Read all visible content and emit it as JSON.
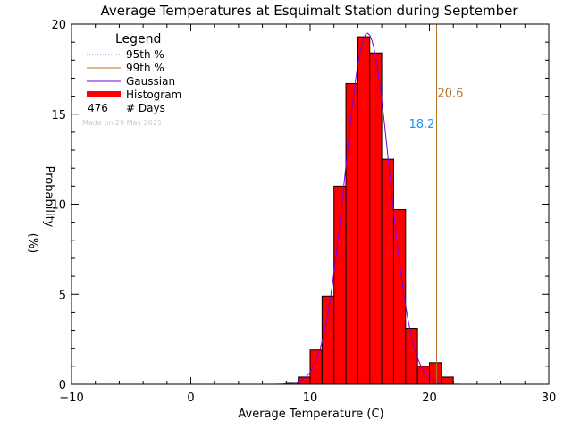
{
  "chart_data": {
    "type": "bar",
    "title": "Average Temperatures at Esquimalt Station during September",
    "xlabel": "Average Temperature (C)",
    "ylabel_top": "Probability",
    "ylabel_bottom": "(%)",
    "xlim": [
      -10,
      30
    ],
    "ylim": [
      0,
      20
    ],
    "xticks": [
      -10,
      0,
      10,
      20,
      30
    ],
    "yticks": [
      0,
      5,
      10,
      15,
      20
    ],
    "grid": false,
    "legend_placement": "top-left",
    "legend": {
      "title": "Legend",
      "items": [
        {
          "label": "95th %",
          "style": "dotted",
          "color": "#1e90ff"
        },
        {
          "label": "99th %",
          "style": "solid",
          "color": "#b8742a"
        },
        {
          "label": "Gaussian",
          "style": "solid",
          "color": "#7a00d6"
        },
        {
          "label": "Histogram",
          "style": "bar",
          "color": "#ff0000"
        }
      ],
      "days_count": "476",
      "days_label": "# Days"
    },
    "made_on": "Made on 29 May 2025",
    "histogram": {
      "bin_width": 1,
      "color": "#ff0000",
      "bins": [
        {
          "x": 8,
          "value": 0.1
        },
        {
          "x": 9,
          "value": 0.4
        },
        {
          "x": 10,
          "value": 1.9
        },
        {
          "x": 11,
          "value": 4.9
        },
        {
          "x": 12,
          "value": 11.0
        },
        {
          "x": 13,
          "value": 16.7
        },
        {
          "x": 14,
          "value": 19.3
        },
        {
          "x": 15,
          "value": 18.4
        },
        {
          "x": 16,
          "value": 12.5
        },
        {
          "x": 17,
          "value": 9.7
        },
        {
          "x": 18,
          "value": 3.1
        },
        {
          "x": 19,
          "value": 1.0
        },
        {
          "x": 20,
          "value": 1.2
        },
        {
          "x": 21,
          "value": 0.4
        }
      ]
    },
    "gaussian": {
      "mean": 14.8,
      "sigma": 1.85,
      "peak": 19.5,
      "color": "#7a00d6"
    },
    "percentiles": [
      {
        "name": "95th %",
        "x": 18.2,
        "label": "18.2",
        "color": "#1e90ff",
        "line_color": "#b8742a",
        "style": "dotted",
        "label_y": 14.5
      },
      {
        "name": "99th %",
        "x": 20.6,
        "label": "20.6",
        "color": "#b8742a",
        "line_color": "#b8742a",
        "style": "solid",
        "label_y": 16.2
      }
    ]
  }
}
